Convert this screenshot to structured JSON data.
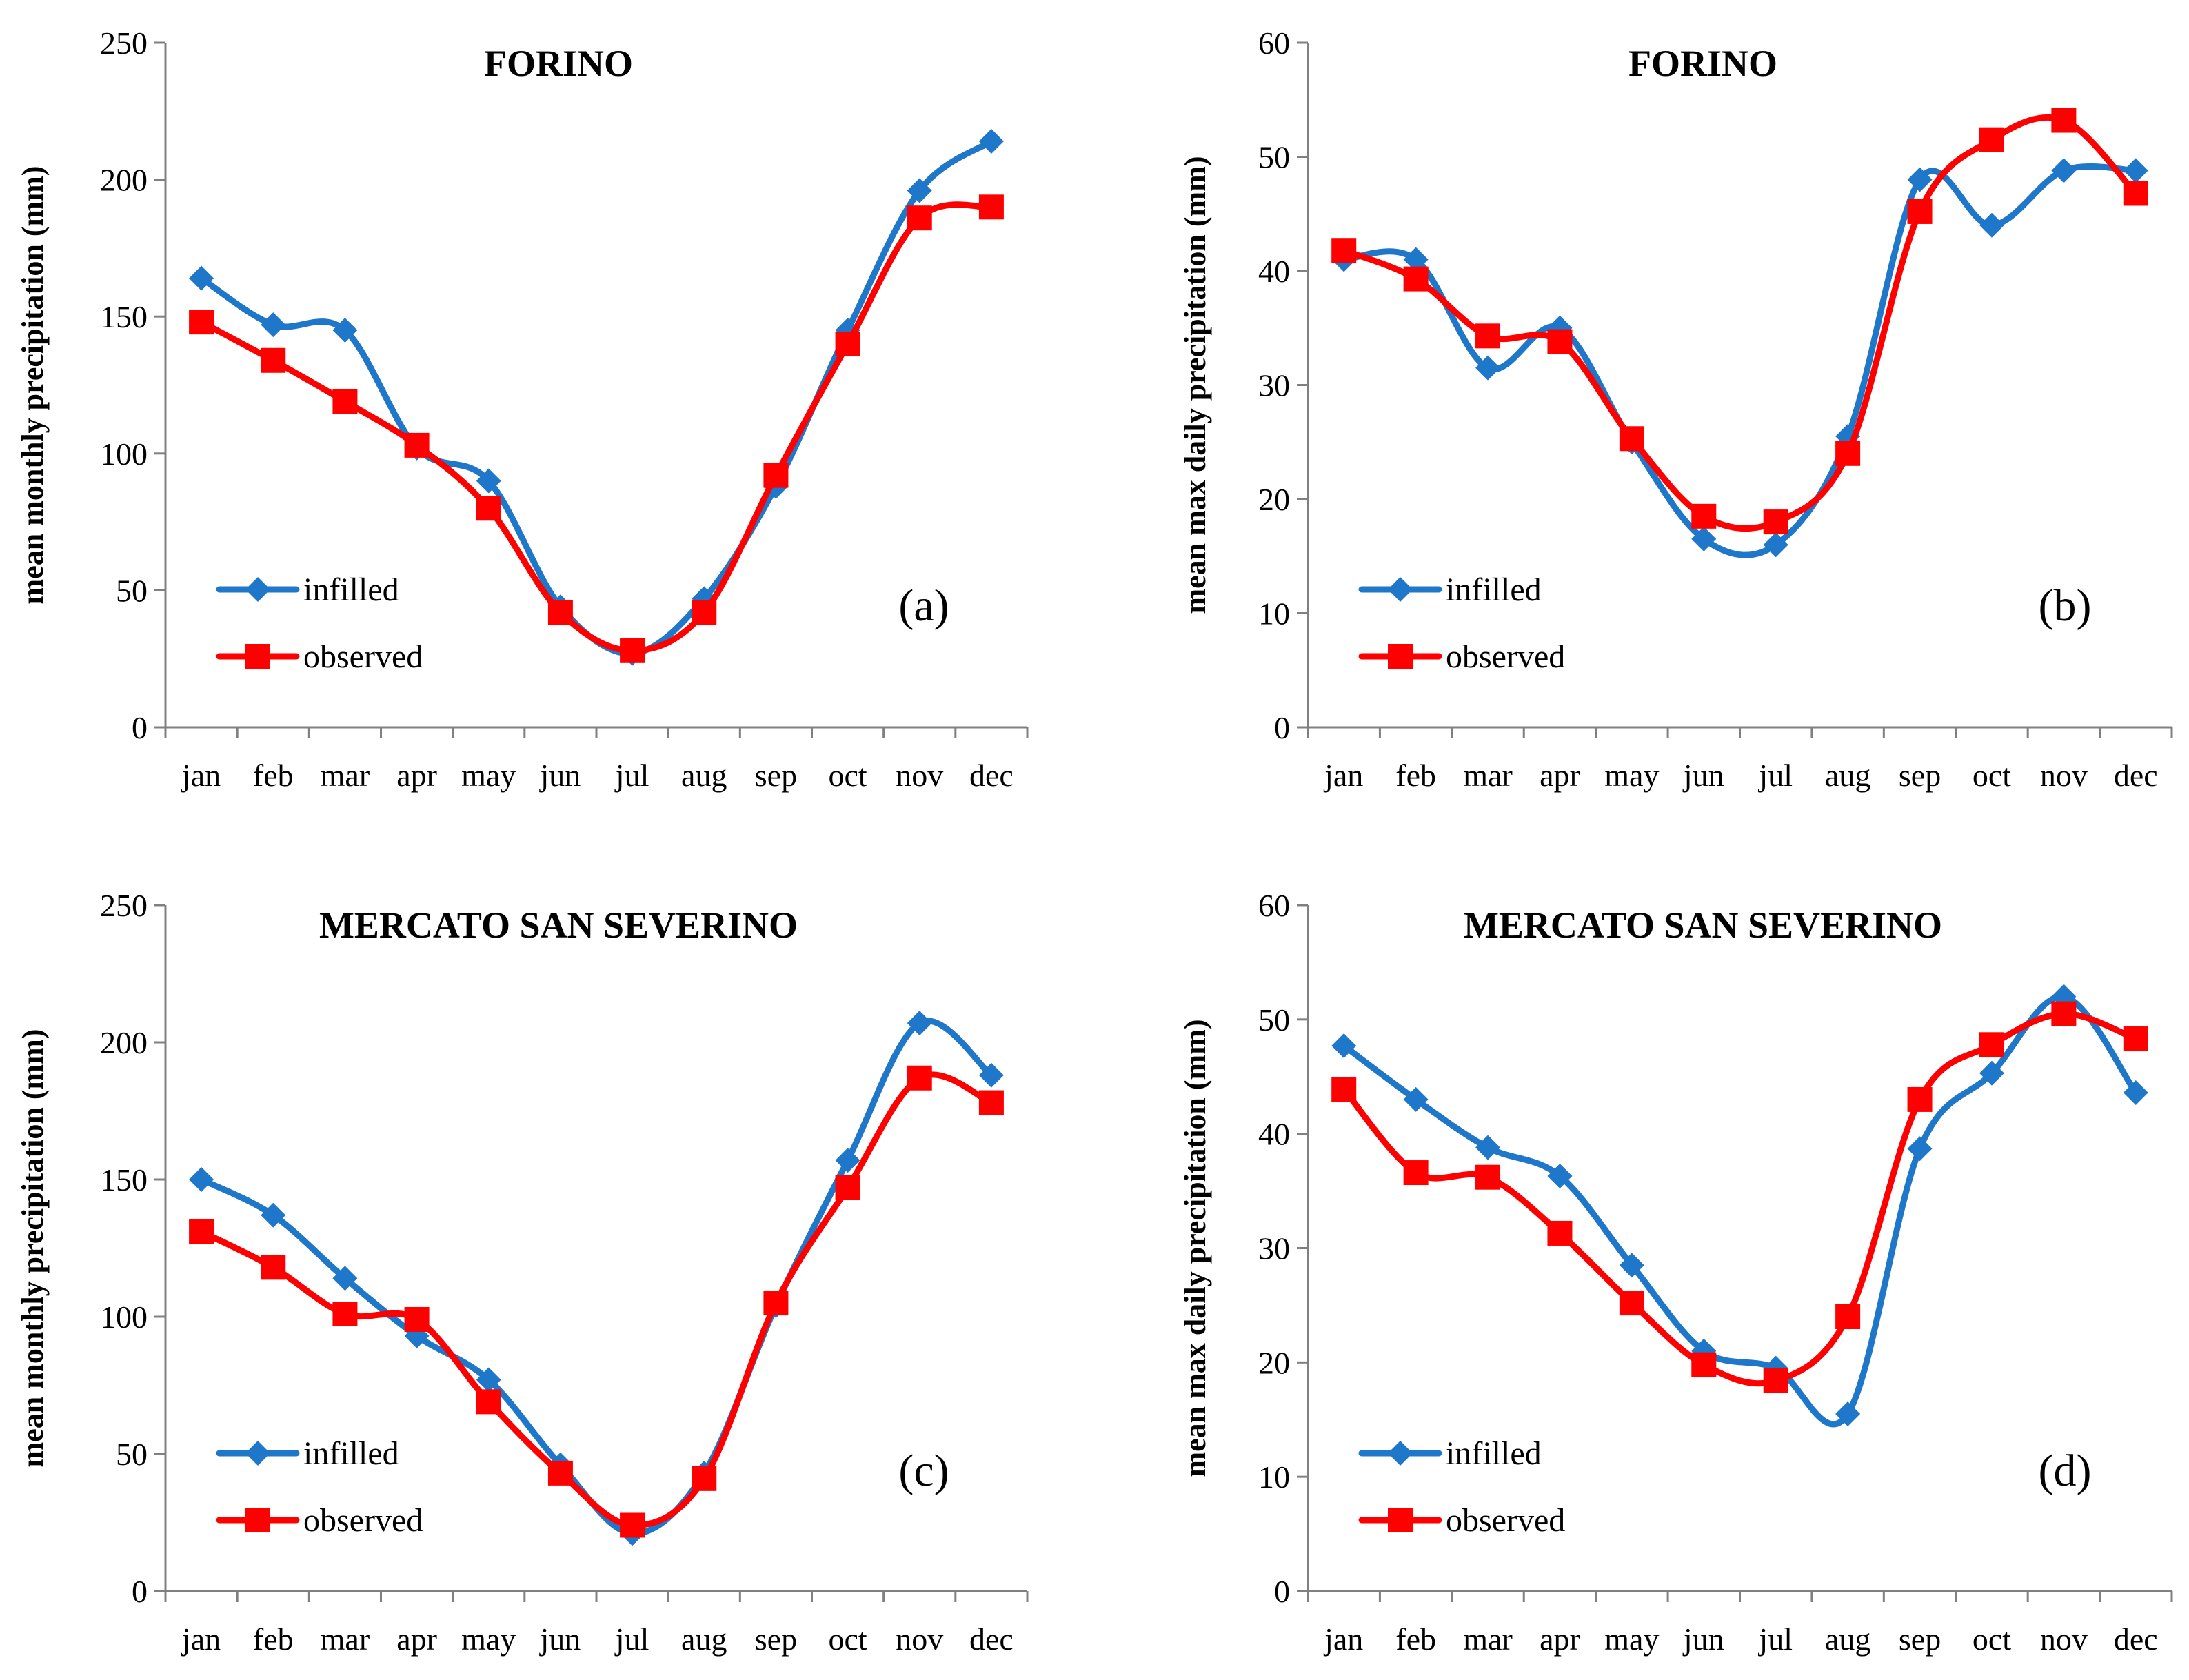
{
  "colors": {
    "infilled": "#1F77C9",
    "observed": "#FF0000",
    "axis": "#808080"
  },
  "legend": {
    "infilled": "infilled",
    "observed": "observed"
  },
  "chart_data": [
    {
      "type": "line",
      "panel": "(a)",
      "title": "FORINO",
      "xlabel": "",
      "ylabel": "mean monthly precipitation (mm)",
      "ylim": [
        0,
        250
      ],
      "yticks": [
        0,
        50,
        100,
        150,
        200,
        250
      ],
      "categories": [
        "jan",
        "feb",
        "mar",
        "apr",
        "may",
        "jun",
        "jul",
        "aug",
        "sep",
        "oct",
        "nov",
        "dec"
      ],
      "series": [
        {
          "name": "infilled",
          "marker": "diamond",
          "values": [
            164,
            147,
            145,
            102,
            90,
            44,
            27,
            47,
            88,
            145,
            196,
            214
          ]
        },
        {
          "name": "observed",
          "marker": "square",
          "values": [
            148,
            134,
            119,
            103,
            80,
            42,
            28,
            42,
            92,
            140,
            186,
            190
          ]
        }
      ]
    },
    {
      "type": "line",
      "panel": "(b)",
      "title": "FORINO",
      "xlabel": "",
      "ylabel": "mean max daily precipitation (mm)",
      "ylim": [
        0,
        60
      ],
      "yticks": [
        0,
        10,
        20,
        30,
        40,
        50,
        60
      ],
      "categories": [
        "jan",
        "feb",
        "mar",
        "apr",
        "may",
        "jun",
        "jul",
        "aug",
        "sep",
        "oct",
        "nov",
        "dec"
      ],
      "series": [
        {
          "name": "infilled",
          "marker": "diamond",
          "values": [
            41,
            41,
            31.5,
            35,
            25,
            16.5,
            16,
            25.5,
            48,
            44,
            48.8,
            48.8
          ]
        },
        {
          "name": "observed",
          "marker": "square",
          "values": [
            41.8,
            39.3,
            34.3,
            33.8,
            25.3,
            18.5,
            18,
            24,
            45.2,
            51.5,
            53.2,
            46.8
          ]
        }
      ]
    },
    {
      "type": "line",
      "panel": "(c)",
      "title": "MERCATO SAN SEVERINO",
      "xlabel": "",
      "ylabel": "mean monthly precipitation (mm)",
      "ylim": [
        0,
        250
      ],
      "yticks": [
        0,
        50,
        100,
        150,
        200,
        250
      ],
      "categories": [
        "jan",
        "feb",
        "mar",
        "apr",
        "may",
        "jun",
        "jul",
        "aug",
        "sep",
        "oct",
        "nov",
        "dec"
      ],
      "series": [
        {
          "name": "infilled",
          "marker": "diamond",
          "values": [
            150,
            137,
            114,
            93,
            77,
            46,
            21,
            43,
            104,
            157,
            207,
            188
          ]
        },
        {
          "name": "observed",
          "marker": "square",
          "values": [
            131,
            118,
            101,
            99,
            69,
            43,
            24,
            41,
            105,
            147,
            187,
            178
          ]
        }
      ]
    },
    {
      "type": "line",
      "panel": "(d)",
      "title": "MERCATO SAN SEVERINO",
      "xlabel": "",
      "ylabel": "mean max daily  precipitation (mm)",
      "ylim": [
        0,
        60
      ],
      "yticks": [
        0,
        10,
        20,
        30,
        40,
        50,
        60
      ],
      "categories": [
        "jan",
        "feb",
        "mar",
        "apr",
        "may",
        "jun",
        "jul",
        "aug",
        "sep",
        "oct",
        "nov",
        "dec"
      ],
      "series": [
        {
          "name": "infilled",
          "marker": "diamond",
          "values": [
            47.7,
            43,
            38.8,
            36.3,
            28.5,
            21,
            19.5,
            15.5,
            38.7,
            45.3,
            52,
            43.6
          ]
        },
        {
          "name": "observed",
          "marker": "square",
          "values": [
            43.9,
            36.6,
            36.2,
            31.3,
            25.2,
            19.8,
            18.4,
            24,
            43,
            47.8,
            50.5,
            48.3
          ]
        }
      ]
    }
  ]
}
